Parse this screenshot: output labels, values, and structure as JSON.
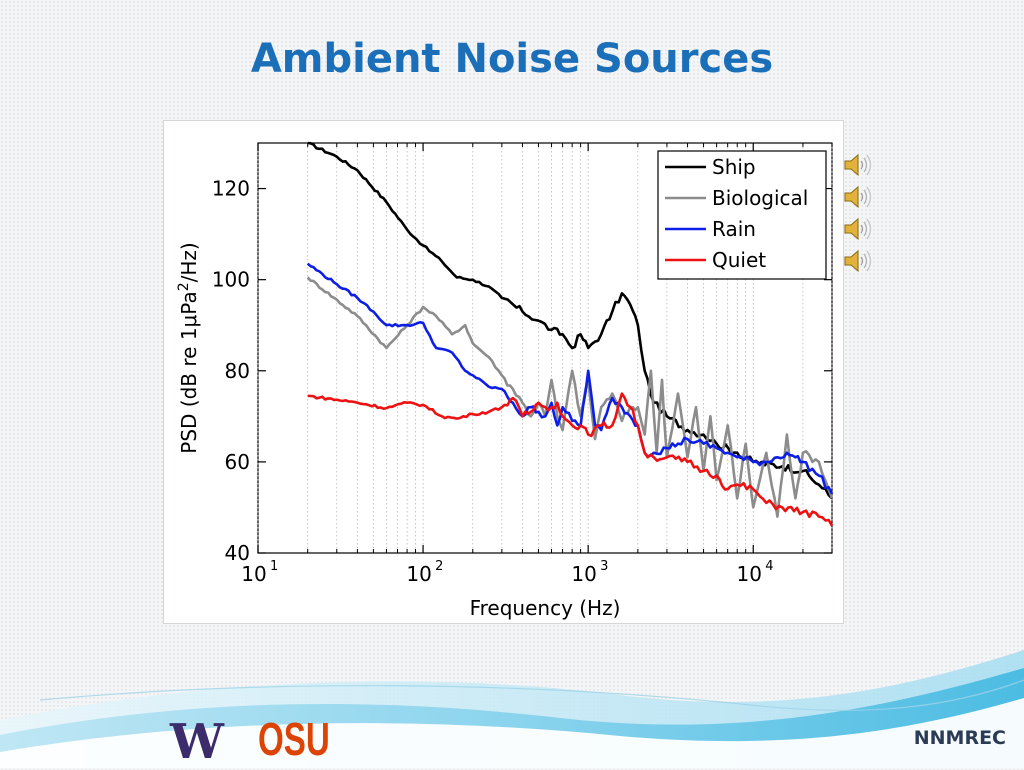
{
  "slide": {
    "title": "Ambient Noise Sources",
    "footer_text": "NNMREC",
    "logo_left_text": "W",
    "logo_right_text": "OSU",
    "speaker_icons": [
      "speaker-icon",
      "speaker-icon",
      "speaker-icon",
      "speaker-icon"
    ]
  },
  "chart_data": {
    "type": "line",
    "xlabel": "Frequency (Hz)",
    "ylabel": "PSD (dB re 1μPa²/Hz)",
    "xscale": "log",
    "xlim": [
      10,
      30000
    ],
    "ylim": [
      40,
      130
    ],
    "xticks": [
      {
        "value": 10,
        "label": "10",
        "exp": "1"
      },
      {
        "value": 100,
        "label": "10",
        "exp": "2"
      },
      {
        "value": 1000,
        "label": "10",
        "exp": "3"
      },
      {
        "value": 10000,
        "label": "10",
        "exp": "4"
      }
    ],
    "yticks": [
      40,
      60,
      80,
      100,
      120
    ],
    "grid": "minor-x dotted",
    "legend_position": "top-right",
    "series": [
      {
        "name": "Ship",
        "color": "#000000",
        "x": [
          20,
          30,
          40,
          60,
          80,
          100,
          130,
          160,
          200,
          250,
          300,
          400,
          500,
          600,
          700,
          800,
          900,
          1000,
          1200,
          1400,
          1600,
          1800,
          2000,
          2200,
          2500,
          3000,
          4000,
          5000,
          6000,
          8000,
          10000,
          15000,
          20000,
          25000,
          30000
        ],
        "values": [
          130,
          127,
          124,
          117,
          111,
          107.5,
          104,
          100.5,
          100,
          98.5,
          96,
          93,
          91,
          89,
          88,
          85,
          88,
          85,
          88,
          93,
          97,
          94.5,
          90,
          80,
          73,
          70,
          67,
          66,
          64,
          62,
          60,
          59,
          58,
          55,
          52
        ]
      },
      {
        "name": "Biological",
        "color": "#8c8c8c",
        "x": [
          20,
          40,
          60,
          80,
          100,
          120,
          150,
          180,
          200,
          250,
          300,
          350,
          400,
          450,
          500,
          550,
          600,
          650,
          700,
          800,
          900,
          1000,
          1100,
          1200,
          1400,
          1600,
          1800,
          2000,
          2200,
          2400,
          2600,
          2800,
          3000,
          3500,
          4000,
          4500,
          5000,
          5500,
          6000,
          7000,
          8000,
          9000,
          10000,
          12000,
          14000,
          16000,
          18000,
          20000,
          25000,
          30000
        ],
        "values": [
          100.5,
          92,
          85,
          90,
          94,
          92,
          88,
          90,
          86,
          83,
          79,
          76,
          73,
          70,
          73,
          70,
          78,
          70,
          67,
          80,
          70,
          78,
          65,
          72,
          75,
          69,
          72,
          72,
          66,
          80,
          62,
          78,
          61,
          75,
          61,
          72,
          58,
          70,
          56,
          68,
          52,
          64,
          50,
          62,
          48,
          66,
          52,
          62,
          60,
          52
        ]
      },
      {
        "name": "Rain",
        "color": "#0d1ee6",
        "x": [
          20,
          30,
          40,
          50,
          60,
          80,
          100,
          120,
          150,
          180,
          200,
          250,
          300,
          350,
          400,
          450,
          500,
          550,
          600,
          650,
          700,
          800,
          900,
          1000,
          1100,
          1200,
          1400,
          1600,
          1800,
          2000,
          2200,
          2500,
          3000,
          3500,
          4000,
          5000,
          6000,
          7000,
          8000,
          10000,
          12000,
          14000,
          16000,
          18000,
          20000,
          25000,
          30000
        ],
        "values": [
          103.5,
          99,
          96,
          93,
          90,
          90,
          90.5,
          85,
          84,
          80,
          79,
          76.5,
          76,
          73,
          70,
          72,
          71,
          70,
          73,
          68,
          72,
          69,
          68,
          80,
          68,
          67,
          74,
          72,
          70,
          68,
          62,
          62,
          63,
          64,
          65,
          64,
          63,
          62,
          61,
          60,
          60,
          61,
          62,
          61,
          60,
          57,
          53
        ]
      },
      {
        "name": "Quiet",
        "color": "#ee1111",
        "x": [
          20,
          40,
          60,
          80,
          100,
          130,
          160,
          200,
          250,
          300,
          350,
          400,
          450,
          500,
          550,
          600,
          650,
          700,
          800,
          900,
          1000,
          1200,
          1400,
          1600,
          1800,
          2000,
          2200,
          2500,
          3000,
          4000,
          5000,
          6000,
          7000,
          8000,
          10000,
          12000,
          15000,
          20000,
          25000,
          30000
        ],
        "values": [
          74.5,
          73,
          71.8,
          73,
          72.5,
          70,
          69.5,
          70.5,
          71,
          72,
          74,
          70,
          71,
          73,
          72,
          72,
          73,
          70,
          68,
          68,
          66,
          68,
          68,
          75,
          72,
          68,
          62,
          61,
          61,
          60,
          58,
          57,
          54,
          55,
          54,
          51,
          50,
          49,
          48,
          46
        ]
      }
    ]
  }
}
